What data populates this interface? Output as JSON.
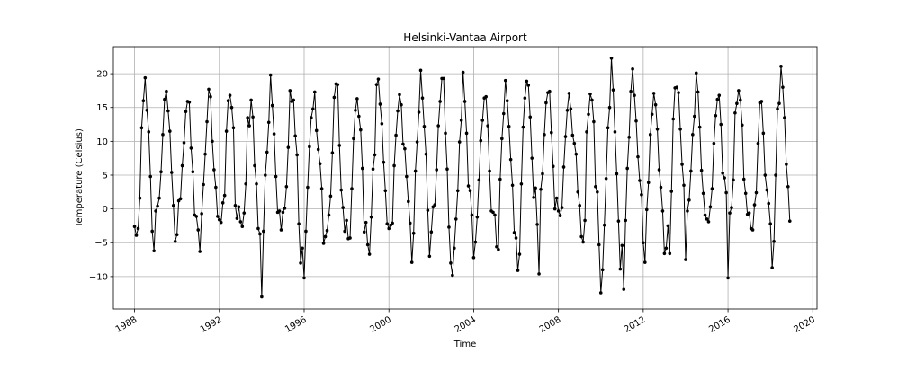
{
  "chart_data": {
    "type": "line",
    "title": "Helsinki-Vantaa Airport",
    "xlabel": "Time",
    "ylabel": "Temperature (Celsius)",
    "xlim": [
      1987.0,
      2020.2
    ],
    "ylim": [
      -14.8,
      24.0
    ],
    "xticks": [
      1988,
      1992,
      1996,
      2000,
      2004,
      2008,
      2012,
      2016,
      2020
    ],
    "xtick_labels": [
      "1988",
      "1992",
      "1996",
      "2000",
      "2004",
      "2008",
      "2012",
      "2016",
      "2020"
    ],
    "yticks": [
      -10,
      -5,
      0,
      5,
      10,
      15,
      20
    ],
    "ytick_labels": [
      "−10",
      "−5",
      "0",
      "5",
      "10",
      "15",
      "20"
    ],
    "grid": true,
    "legend": "none",
    "line_color": "#000000",
    "marker": "circle",
    "x_start": 1988.0,
    "x_step_months": 1,
    "series": [
      {
        "values": [
          -2.6,
          -3.9,
          -2.9,
          1.6,
          12.0,
          16.0,
          19.4,
          14.6,
          11.4,
          4.8,
          -3.3,
          -6.2,
          -0.3,
          0.4,
          1.6,
          5.5,
          11.0,
          16.2,
          17.4,
          14.5,
          11.5,
          5.4,
          0.5,
          -4.8,
          -3.8,
          1.2,
          1.5,
          6.4,
          9.8,
          14.4,
          15.9,
          15.8,
          9.0,
          5.5,
          -0.9,
          -1.1,
          -3.1,
          -6.3,
          -0.7,
          3.6,
          8.1,
          12.9,
          17.7,
          16.6,
          10.0,
          5.8,
          3.2,
          -1.1,
          -1.6,
          -2.0,
          0.9,
          2.0,
          11.5,
          16.0,
          16.8,
          15.0,
          12.0,
          0.5,
          -1.4,
          0.3,
          -1.9,
          -2.6,
          -0.6,
          3.7,
          13.5,
          12.3,
          16.1,
          13.6,
          6.4,
          3.7,
          -2.9,
          -3.7,
          -13.0,
          -3.3,
          5.0,
          8.4,
          12.8,
          19.8,
          15.3,
          11.1,
          4.8,
          -0.5,
          -0.3,
          -3.1,
          -0.5,
          0.1,
          3.3,
          9.1,
          17.5,
          15.9,
          16.1,
          10.8,
          8.0,
          -2.2,
          -8.0,
          -5.8,
          -10.2,
          -3.3,
          3.2,
          9.2,
          13.5,
          14.8,
          17.3,
          11.6,
          8.8,
          6.7,
          3.0,
          -5.1,
          -4.1,
          -3.2,
          -0.9,
          1.9,
          8.3,
          16.5,
          18.5,
          18.4,
          9.4,
          2.8,
          0.2,
          -3.3,
          -1.7,
          -4.4,
          -4.3,
          3.0,
          10.4,
          14.6,
          16.3,
          13.7,
          11.7,
          6.0,
          -3.4,
          -2.0,
          -5.3,
          -6.7,
          -1.2,
          5.9,
          8.0,
          18.4,
          19.2,
          15.5,
          12.6,
          6.9,
          2.7,
          -2.2,
          -2.9,
          -2.4,
          -2.1,
          6.4,
          10.9,
          14.5,
          16.9,
          15.4,
          9.6,
          8.9,
          4.8,
          1.1,
          -2.1,
          -7.9,
          -3.6,
          5.6,
          9.9,
          14.3,
          20.5,
          16.4,
          12.2,
          8.1,
          -0.2,
          -7.0,
          -3.4,
          0.3,
          0.6,
          5.8,
          12.3,
          15.9,
          19.3,
          19.3,
          11.2,
          5.9,
          -2.7,
          -8.0,
          -9.8,
          -5.8,
          -1.5,
          2.7,
          9.9,
          13.1,
          20.2,
          15.9,
          11.2,
          3.4,
          2.7,
          -0.9,
          -7.2,
          -4.9,
          -1.2,
          4.3,
          10.1,
          13.1,
          16.4,
          16.6,
          12.3,
          5.6,
          -0.3,
          -0.5,
          -0.9,
          -5.6,
          -6.0,
          4.4,
          10.4,
          14.1,
          19.0,
          16.0,
          12.2,
          7.3,
          3.5,
          -3.5,
          -4.3,
          -9.1,
          -6.7,
          3.7,
          12.1,
          16.4,
          18.9,
          18.3,
          13.6,
          7.5,
          1.7,
          3.1,
          -2.3,
          -9.6,
          2.9,
          5.2,
          11.0,
          15.7,
          17.2,
          17.4,
          11.3,
          6.3,
          0.0,
          1.6,
          -0.3,
          -1.0,
          0.2,
          6.2,
          10.7,
          14.6,
          17.1,
          14.8,
          10.9,
          9.7,
          8.1,
          2.5,
          0.5,
          -4.1,
          -4.9,
          -1.7,
          11.4,
          14.0,
          17.0,
          16.1,
          12.9,
          3.3,
          2.5,
          -5.3,
          -12.4,
          -9.0,
          -2.4,
          4.5,
          12.0,
          15.0,
          22.3,
          17.6,
          11.4,
          5.2,
          -1.8,
          -8.9,
          -5.4,
          -11.9,
          -1.7,
          6.0,
          10.6,
          17.4,
          20.7,
          16.8,
          13.0,
          7.7,
          4.2,
          2.1,
          -5.0,
          -7.9,
          -0.1,
          3.9,
          11.0,
          14.0,
          17.1,
          15.4,
          11.8,
          5.8,
          3.2,
          -0.3,
          -6.6,
          -5.8,
          -2.5,
          -6.6,
          2.6,
          13.3,
          17.9,
          18.0,
          17.2,
          11.8,
          6.6,
          3.5,
          -7.5,
          -0.3,
          1.3,
          5.6,
          11.0,
          13.7,
          20.1,
          17.3,
          12.1,
          5.7,
          2.3,
          -0.9,
          -1.5,
          -1.9,
          0.3,
          3.0,
          9.7,
          13.8,
          16.2,
          16.8,
          12.5,
          5.3,
          4.6,
          2.4,
          -10.2,
          -0.6,
          0.2,
          4.3,
          14.2,
          15.6,
          17.5,
          16.1,
          12.4,
          4.4,
          2.3,
          -0.8,
          -0.6,
          -2.9,
          -3.1,
          0.6,
          2.4,
          9.7,
          15.7,
          15.9,
          11.2,
          5.0,
          2.8,
          0.8,
          -2.2,
          -8.7,
          -4.8,
          5.0,
          14.8,
          15.6,
          21.1,
          18.0,
          13.5,
          6.6,
          3.3,
          -1.8
        ]
      }
    ]
  }
}
